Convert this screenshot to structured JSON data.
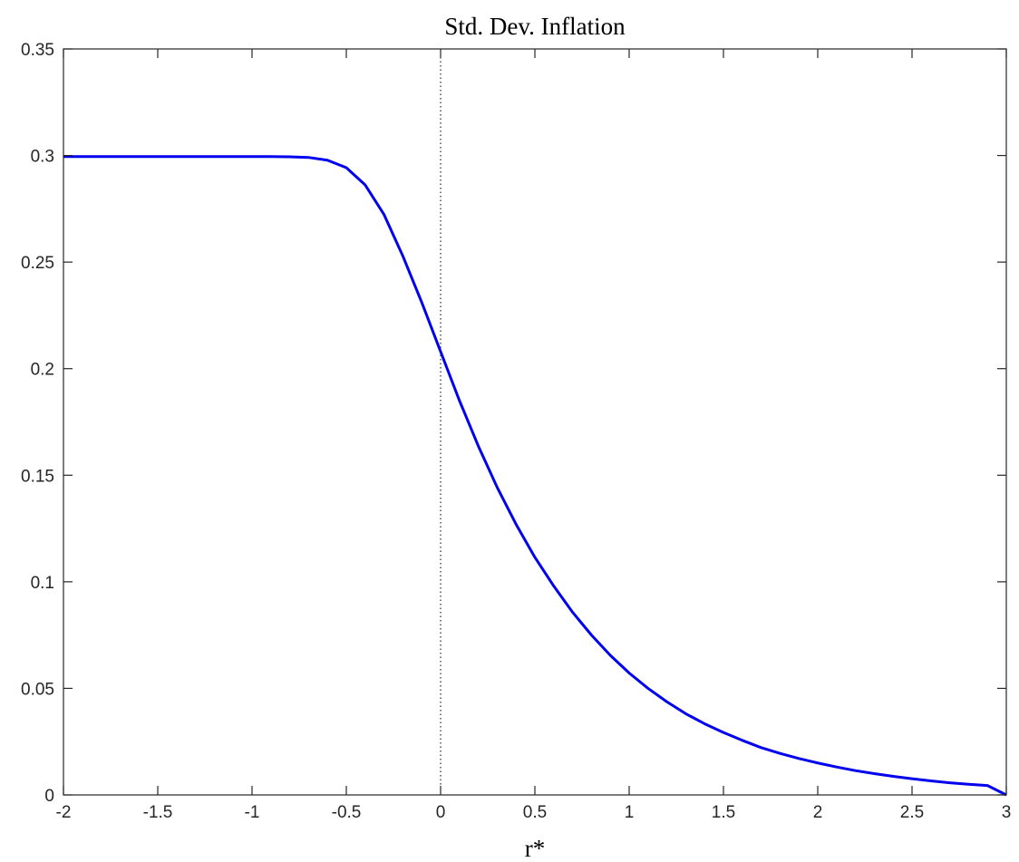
{
  "chart_data": {
    "type": "line",
    "title": "Std. Dev. Inflation",
    "xlabel": "r*",
    "ylabel": "",
    "xlim": [
      -2,
      3
    ],
    "ylim": [
      0,
      0.35
    ],
    "xticks": [
      -2,
      -1.5,
      -1,
      -0.5,
      0,
      0.5,
      1,
      1.5,
      2,
      2.5,
      3
    ],
    "yticks": [
      0,
      0.05,
      0.1,
      0.15,
      0.2,
      0.25,
      0.3,
      0.35
    ],
    "xtick_labels": [
      "-2",
      "-1.5",
      "-1",
      "-0.5",
      "0",
      "0.5",
      "1",
      "1.5",
      "2",
      "2.5",
      "3"
    ],
    "ytick_labels": [
      "0",
      "0.05",
      "0.1",
      "0.15",
      "0.2",
      "0.25",
      "0.3",
      "0.35"
    ],
    "grid": false,
    "reference_line": {
      "x": 0,
      "style": "dotted"
    },
    "series": [
      {
        "color": "#0000ee",
        "x": [
          -2.0,
          -1.9,
          -1.8,
          -1.7,
          -1.6,
          -1.5,
          -1.4,
          -1.3,
          -1.2,
          -1.1,
          -1.0,
          -0.9,
          -0.8,
          -0.7,
          -0.6,
          -0.5,
          -0.4,
          -0.3,
          -0.2,
          -0.1,
          0.0,
          0.1,
          0.2,
          0.3,
          0.4,
          0.5,
          0.6,
          0.7,
          0.8,
          0.9,
          1.0,
          1.1,
          1.2,
          1.3,
          1.4,
          1.5,
          1.6,
          1.7,
          1.8,
          1.9,
          2.0,
          2.1,
          2.2,
          2.3,
          2.4,
          2.5,
          2.6,
          2.7,
          2.8,
          2.9,
          3.0
        ],
        "y": [
          0.2995,
          0.2995,
          0.2995,
          0.2995,
          0.2995,
          0.2995,
          0.2995,
          0.2995,
          0.2995,
          0.2995,
          0.2995,
          0.2995,
          0.2994,
          0.2991,
          0.2978,
          0.2943,
          0.2862,
          0.2723,
          0.2528,
          0.2311,
          0.208,
          0.185,
          0.1637,
          0.1443,
          0.127,
          0.1115,
          0.098,
          0.0857,
          0.075,
          0.0655,
          0.0572,
          0.05,
          0.0437,
          0.0381,
          0.0334,
          0.0293,
          0.0256,
          0.0222,
          0.0195,
          0.0171,
          0.015,
          0.0131,
          0.0114,
          0.01,
          0.0087,
          0.0076,
          0.0066,
          0.0057,
          0.005,
          0.0044,
          0.0
        ]
      }
    ]
  }
}
